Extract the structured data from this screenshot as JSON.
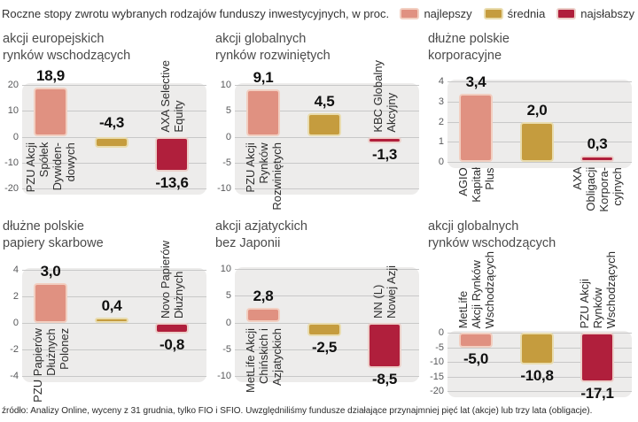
{
  "header": {
    "title": "Roczne stopy zwrotu wybranych rodzajów funduszy inwestycyjnych, w proc.",
    "legend": [
      {
        "key": "najlepszy",
        "label": "najlepszy",
        "color": "#e09181",
        "border": "#f2cfc1"
      },
      {
        "key": "srednia",
        "label": "średnia",
        "color": "#c59c3e",
        "border": "#e9dcae"
      },
      {
        "key": "najslabszy",
        "label": "najsłabszy",
        "color": "#b01f3c",
        "border": "#eccfc9"
      }
    ]
  },
  "footer": {
    "source": "źródło: Analizy Online, wyceny z 31 grudnia, tylko FIO i SFIO. Uwzględniliśmy fundusze działające przynajmniej pięć lat (akcje) lub trzy lata (obligacje)."
  },
  "chart_data": [
    {
      "type": "bar",
      "title_lines": [
        "akcji europejskich",
        "rynków wschodzących"
      ],
      "ticks": [
        20,
        10,
        0,
        -10,
        -20
      ],
      "ylim": [
        -20,
        20
      ],
      "bars": [
        {
          "series": "najlepszy",
          "value": 18.9,
          "value_label": "18,9",
          "fund_lines": [
            "PZU Akcji",
            "Spółek",
            "Dywiden-",
            "dowych"
          ]
        },
        {
          "series": "srednia",
          "value": -4.3,
          "value_label": "-4,3",
          "value_above": true
        },
        {
          "series": "najslabszy",
          "value": -13.6,
          "value_label": "-13,6",
          "fund_lines": [
            "AXA Selective",
            "Equity"
          ]
        }
      ]
    },
    {
      "type": "bar",
      "title_lines": [
        "akcji globalnych",
        "rynków rozwiniętych"
      ],
      "ticks": [
        10,
        5,
        0,
        -5,
        -10
      ],
      "ylim": [
        -10,
        10
      ],
      "bars": [
        {
          "series": "najlepszy",
          "value": 9.1,
          "value_label": "9,1",
          "fund_lines": [
            "PZU Akcji",
            "Rynków",
            "Rozwiniętych"
          ]
        },
        {
          "series": "srednia",
          "value": 4.5,
          "value_label": "4,5"
        },
        {
          "series": "najslabszy",
          "value": -1.3,
          "value_label": "-1,3",
          "fund_lines": [
            "KBC Globalny",
            "Akcyjny"
          ]
        }
      ]
    },
    {
      "type": "bar",
      "title_lines": [
        "dłużne polskie",
        "korporacyjne"
      ],
      "ticks": [
        4,
        3,
        2,
        1,
        0
      ],
      "ylim": [
        0,
        4
      ],
      "bars": [
        {
          "series": "najlepszy",
          "value": 3.4,
          "value_label": "3,4",
          "fund_lines": [
            "AGIO",
            "Kapitał",
            "Plus"
          ]
        },
        {
          "series": "srednia",
          "value": 2.0,
          "value_label": "2,0"
        },
        {
          "series": "najslabszy",
          "value": 0.3,
          "value_label": "0,3",
          "fund_lines": [
            "AXA",
            "Obligacji",
            "Korpora-",
            "cyjnych"
          ]
        }
      ]
    },
    {
      "type": "bar",
      "title_lines": [
        "dłużne polskie",
        "papiery skarbowe"
      ],
      "ticks": [
        4,
        2,
        0,
        -2,
        -4
      ],
      "ylim": [
        -4,
        4
      ],
      "bars": [
        {
          "series": "najlepszy",
          "value": 3.0,
          "value_label": "3,0",
          "fund_lines": [
            "PZU Papierów",
            "Dłużnych",
            "Polonez"
          ]
        },
        {
          "series": "srednia",
          "value": 0.4,
          "value_label": "0,4"
        },
        {
          "series": "najslabszy",
          "value": -0.8,
          "value_label": "-0,8",
          "fund_lines": [
            "Novo Papierów",
            "Dłużnych"
          ]
        }
      ]
    },
    {
      "type": "bar",
      "title_lines": [
        "akcji azjatyckich",
        "bez Japonii"
      ],
      "ticks": [
        10,
        5,
        0,
        -5,
        -10
      ],
      "ylim": [
        -10,
        10
      ],
      "bars": [
        {
          "series": "najlepszy",
          "value": 2.8,
          "value_label": "2,8",
          "fund_lines": [
            "MetLife Akcji",
            "Chińskich i",
            "Azjatyckich"
          ]
        },
        {
          "series": "srednia",
          "value": -2.5,
          "value_label": "-2,5"
        },
        {
          "series": "najslabszy",
          "value": -8.5,
          "value_label": "-8,5",
          "fund_lines": [
            "NN (L)",
            "Nowej Azji"
          ]
        }
      ]
    },
    {
      "type": "bar",
      "title_lines": [
        "akcji globalnych",
        "rynków wschodzących"
      ],
      "ticks": [
        0,
        -5,
        -10,
        -15,
        -20
      ],
      "ylim": [
        -20,
        0
      ],
      "bars": [
        {
          "series": "najlepszy",
          "value": -5.0,
          "value_label": "-5,0",
          "fund_lines": [
            "MetLife",
            "Akcji Rynków",
            "Wschodzących"
          ]
        },
        {
          "series": "srednia",
          "value": -10.8,
          "value_label": "-10,8"
        },
        {
          "series": "najslabszy",
          "value": -17.1,
          "value_label": "-17,1",
          "fund_lines": [
            "PZU Akcji",
            "Rynków",
            "Wschodzących"
          ]
        }
      ]
    }
  ]
}
